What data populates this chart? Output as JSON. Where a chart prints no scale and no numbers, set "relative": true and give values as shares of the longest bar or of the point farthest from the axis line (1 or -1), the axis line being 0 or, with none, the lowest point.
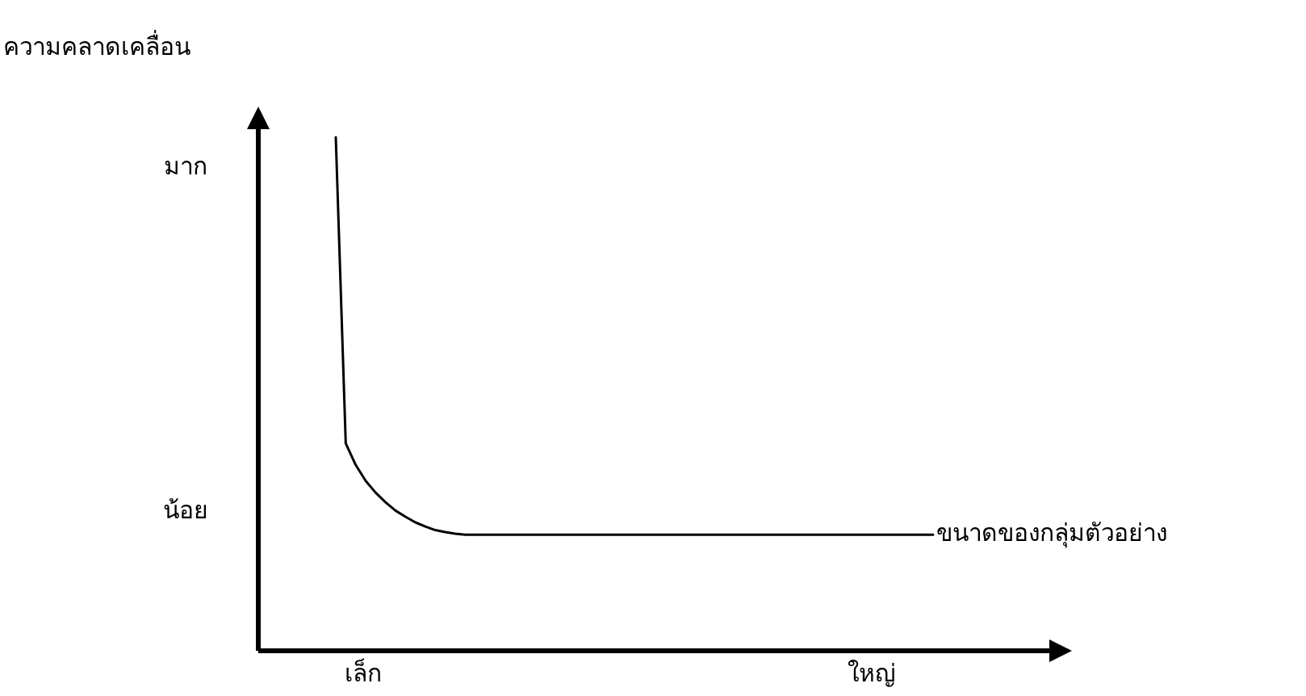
{
  "chart_data": {
    "type": "line",
    "relative": true,
    "xlabel": "ขนาดของกลุ่มตัวอย่าง",
    "color": "#000000",
    "categories": [
      null,
      null,
      null,
      null,
      null,
      null,
      null,
      null,
      null,
      null,
      null,
      null,
      null,
      null,
      null,
      null,
      null,
      null,
      null,
      null,
      null,
      null,
      null,
      null,
      null,
      null,
      null,
      null,
      null,
      null,
      null,
      null,
      null,
      null,
      null,
      null,
      null,
      null,
      null,
      null,
      null,
      null,
      null,
      null,
      null,
      null,
      null,
      null,
      null,
      null,
      null,
      null,
      null,
      null,
      null,
      null,
      null,
      null,
      null,
      null,
      null
    ],
    "values": [
      1,
      0.404,
      0.362,
      0.331,
      0.308,
      0.289,
      0.273,
      0.261,
      0.25,
      0.242,
      0.235,
      0.231,
      0.228,
      0.226,
      0.226,
      0.226,
      0.226,
      0.226,
      0.226,
      0.226,
      0.226,
      0.226,
      0.226,
      0.226,
      0.226,
      0.226,
      0.226,
      0.226,
      0.226,
      0.226,
      0.226,
      0.226,
      0.226,
      0.226,
      0.226,
      0.226,
      0.226,
      0.226,
      0.226,
      0.226,
      0.226,
      0.226,
      0.226,
      0.226,
      0.226,
      0.226,
      0.226,
      0.226,
      0.226,
      0.226,
      0.226,
      0.226,
      0.226,
      0.226,
      0.226,
      0.226,
      0.226,
      0.226,
      0.226,
      0.226,
      0.226
    ],
    "annotations": [
      "ความคลาดเคลื่อน",
      "มาก",
      "น้อย",
      "เล็ก",
      "ใหญ่"
    ]
  }
}
